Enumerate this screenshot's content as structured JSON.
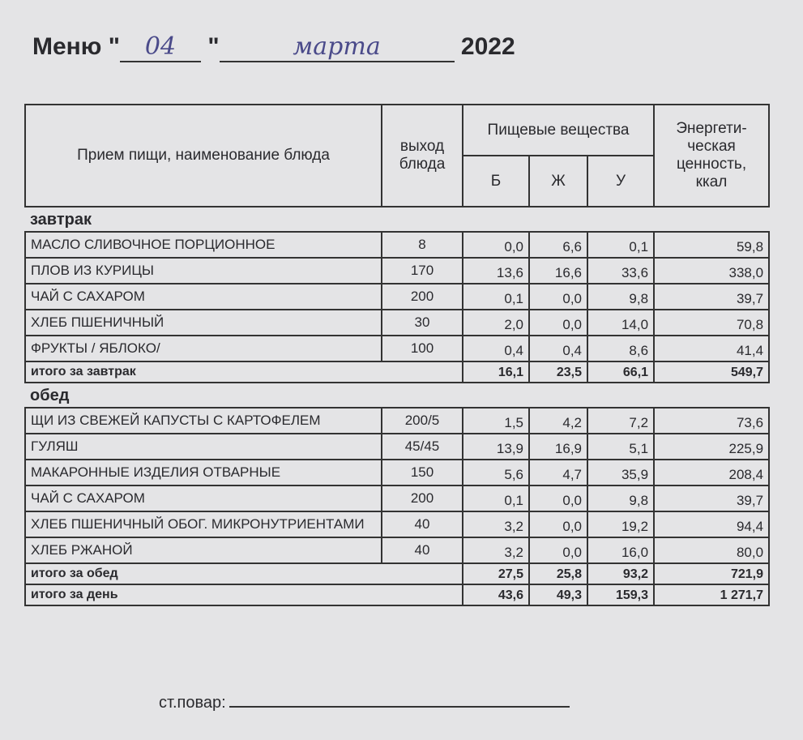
{
  "header": {
    "title": "Меню",
    "open_quote": "\"",
    "day": "04",
    "close_quote": "\"",
    "month": "марта",
    "year": "2022"
  },
  "table": {
    "columns": {
      "name": "Прием пищи, наименование блюда",
      "yield": "выход блюда",
      "nutrients": "Пищевые вещества",
      "b": "Б",
      "zh": "Ж",
      "u": "У",
      "energy": "Энергети-ческая ценность, ккал"
    },
    "sections": [
      {
        "title": "завтрак",
        "rows": [
          [
            "МАСЛО  СЛИВОЧНОЕ  ПОРЦИОННОЕ",
            "8",
            "0,0",
            "6,6",
            "0,1",
            "59,8"
          ],
          [
            "ПЛОВ ИЗ КУРИЦЫ",
            "170",
            "13,6",
            "16,6",
            "33,6",
            "338,0"
          ],
          [
            "ЧАЙ С САХАРОМ",
            "200",
            "0,1",
            "0,0",
            "9,8",
            "39,7"
          ],
          [
            "ХЛЕБ ПШЕНИЧНЫЙ",
            "30",
            "2,0",
            "0,0",
            "14,0",
            "70,8"
          ],
          [
            "ФРУКТЫ / ЯБЛОКО/",
            "100",
            "0,4",
            "0,4",
            "8,6",
            "41,4"
          ]
        ],
        "total": [
          "итого за завтрак",
          "16,1",
          "23,5",
          "66,1",
          "549,7"
        ]
      },
      {
        "title": "обед",
        "rows": [
          [
            "ЩИ ИЗ СВЕЖЕЙ КАПУСТЫ С КАРТОФЕЛЕМ",
            "200/5",
            "1,5",
            "4,2",
            "7,2",
            "73,6"
          ],
          [
            "ГУЛЯШ",
            "45/45",
            "13,9",
            "16,9",
            "5,1",
            "225,9"
          ],
          [
            "МАКАРОННЫЕ ИЗДЕЛИЯ ОТВАРНЫЕ",
            "150",
            "5,6",
            "4,7",
            "35,9",
            "208,4"
          ],
          [
            "ЧАЙ С САХАРОМ",
            "200",
            "0,1",
            "0,0",
            "9,8",
            "39,7"
          ],
          [
            "ХЛЕБ ПШЕНИЧНЫЙ ОБОГ. МИКРОНУТРИЕНТАМИ",
            "40",
            "3,2",
            "0,0",
            "19,2",
            "94,4"
          ],
          [
            "ХЛЕБ РЖАНОЙ",
            "40",
            "3,2",
            "0,0",
            "16,0",
            "80,0"
          ]
        ],
        "total": [
          "итого за обед",
          "27,5",
          "25,8",
          "93,2",
          "721,9"
        ]
      }
    ],
    "day_total": [
      "итого за день",
      "43,6",
      "49,3",
      "159,3",
      "1 271,7"
    ]
  },
  "footer": {
    "label": "ст.повар:"
  }
}
